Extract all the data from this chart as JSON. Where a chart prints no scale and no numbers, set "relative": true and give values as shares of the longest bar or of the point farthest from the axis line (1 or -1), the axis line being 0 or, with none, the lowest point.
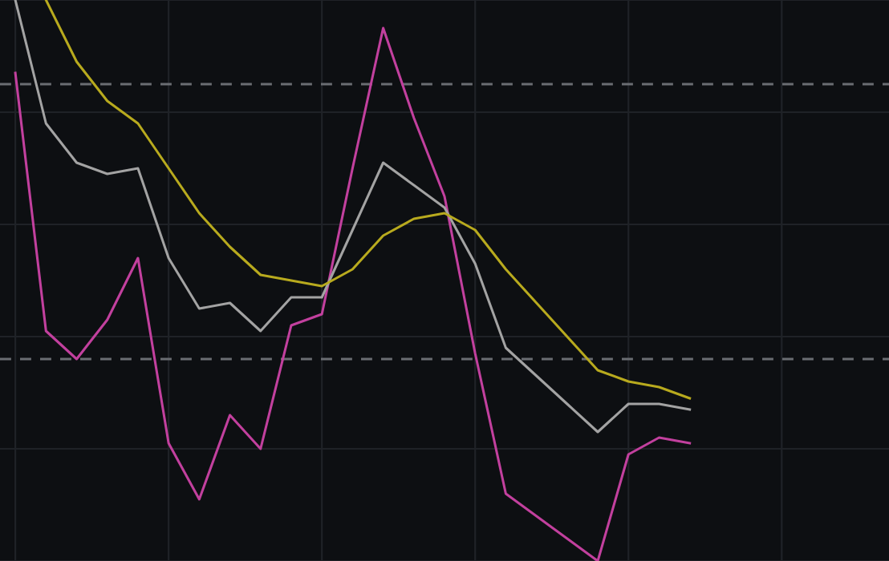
{
  "chart_data": {
    "type": "line",
    "relative": true,
    "grid": true,
    "line_style": "solid",
    "categories": [
      null,
      null,
      null,
      null,
      null,
      null,
      null,
      null,
      null,
      null,
      null,
      null,
      null,
      null,
      null,
      null,
      null,
      null,
      null,
      null,
      null,
      null,
      null,
      null,
      null,
      null,
      null,
      null,
      null
    ],
    "series": [
      {
        "color": "#c2409e",
        "values": [
          0.87,
          0.41,
          0.36,
          0.43,
          0.54,
          0.21,
          0.11,
          0.26,
          0.2,
          0.42,
          0.44,
          0.7,
          0.95,
          0.79,
          0.65,
          0.37,
          0.12,
          0.08,
          0.04,
          0.0,
          0.19,
          0.22,
          0.21,
          null,
          null,
          null,
          null,
          null,
          null
        ]
      },
      {
        "color": "#a3a3a3",
        "values": [
          1.0,
          0.78,
          0.71,
          0.69,
          0.7,
          0.54,
          0.45,
          0.46,
          0.41,
          0.47,
          0.47,
          0.59,
          0.71,
          0.67,
          0.63,
          0.53,
          0.38,
          0.33,
          0.28,
          0.23,
          0.28,
          0.28,
          0.27,
          null,
          null,
          null,
          null,
          null,
          null
        ]
      },
      {
        "color": "#b8aa1e",
        "values": [
          null,
          1.0,
          0.89,
          0.82,
          0.78,
          0.7,
          0.62,
          0.56,
          0.51,
          0.5,
          0.49,
          0.52,
          0.58,
          0.61,
          0.62,
          0.59,
          0.52,
          0.46,
          0.4,
          0.34,
          0.32,
          0.31,
          0.29,
          null,
          null,
          null,
          null,
          null,
          null
        ]
      }
    ],
    "ref_lines": [
      {
        "axis": "y",
        "value": 0.85,
        "color": "#6a6d72",
        "line_style": "dashed"
      },
      {
        "axis": "y",
        "value": 0.36,
        "color": "#6a6d72",
        "line_style": "dashed"
      }
    ]
  }
}
